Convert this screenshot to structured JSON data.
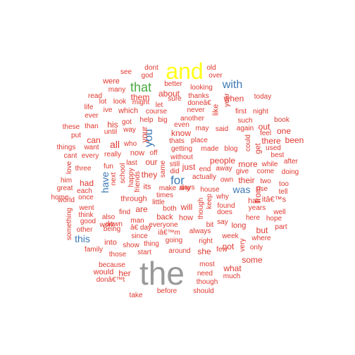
{
  "colors": {
    "red": "#e0382f",
    "blue": "#3a78b5",
    "green": "#49a941",
    "yellow": "#ffff1a",
    "gray": "#999999"
  },
  "words": [
    {
      "t": "the",
      "c": "gray",
      "s": 46
    },
    {
      "t": "and",
      "c": "yellow",
      "s": 32
    },
    {
      "t": "that",
      "c": "green",
      "s": 18
    },
    {
      "t": "with",
      "c": "blue",
      "s": 16
    },
    {
      "t": "for",
      "c": "blue",
      "s": 17
    },
    {
      "t": "you",
      "c": "blue",
      "s": 16,
      "v": true
    },
    {
      "t": "was",
      "c": "blue",
      "s": 14
    },
    {
      "t": "have",
      "c": "blue",
      "s": 14,
      "v": true
    },
    {
      "t": "this",
      "c": "blue",
      "s": 14
    },
    {
      "t": "dont",
      "c": "red",
      "s": 10
    },
    {
      "t": "old",
      "c": "red",
      "s": 10
    },
    {
      "t": "see",
      "c": "red",
      "s": 10
    },
    {
      "t": "god",
      "c": "red",
      "s": 10
    },
    {
      "t": "over",
      "c": "red",
      "s": 10
    },
    {
      "t": "were",
      "c": "red",
      "s": 11
    },
    {
      "t": "better",
      "c": "red",
      "s": 10
    },
    {
      "t": "many",
      "c": "red",
      "s": 10
    },
    {
      "t": "looking",
      "c": "red",
      "s": 10
    },
    {
      "t": "year",
      "c": "red",
      "s": 10,
      "v": true
    },
    {
      "t": "read",
      "c": "red",
      "s": 10
    },
    {
      "t": "about",
      "c": "red",
      "s": 12
    },
    {
      "t": "them",
      "c": "red",
      "s": 12
    },
    {
      "t": "thanks",
      "c": "red",
      "s": 10
    },
    {
      "t": "when",
      "c": "red",
      "s": 12
    },
    {
      "t": "today",
      "c": "red",
      "s": 10
    },
    {
      "t": "lot",
      "c": "red",
      "s": 10
    },
    {
      "t": "look",
      "c": "red",
      "s": 10
    },
    {
      "t": "might",
      "c": "red",
      "s": 10
    },
    {
      "t": "let",
      "c": "red",
      "s": 10
    },
    {
      "t": "sure",
      "c": "red",
      "s": 10
    },
    {
      "t": "doneâ€",
      "c": "red",
      "s": 10
    },
    {
      "t": "life",
      "c": "red",
      "s": 10
    },
    {
      "t": "ive",
      "c": "red",
      "s": 10
    },
    {
      "t": "which",
      "c": "red",
      "s": 11
    },
    {
      "t": "course",
      "c": "red",
      "s": 10
    },
    {
      "t": "never",
      "c": "red",
      "s": 10
    },
    {
      "t": "first",
      "c": "red",
      "s": 10
    },
    {
      "t": "night",
      "c": "red",
      "s": 10
    },
    {
      "t": "ever",
      "c": "red",
      "s": 10
    },
    {
      "t": "got",
      "c": "red",
      "s": 10
    },
    {
      "t": "help",
      "c": "red",
      "s": 10
    },
    {
      "t": "big",
      "c": "red",
      "s": 10
    },
    {
      "t": "another",
      "c": "red",
      "s": 10
    },
    {
      "t": "like",
      "c": "red",
      "s": 11,
      "v": true
    },
    {
      "t": "such",
      "c": "red",
      "s": 10
    },
    {
      "t": "book",
      "c": "red",
      "s": 10
    },
    {
      "t": "these",
      "c": "red",
      "s": 10
    },
    {
      "t": "than",
      "c": "red",
      "s": 10
    },
    {
      "t": "his",
      "c": "red",
      "s": 12
    },
    {
      "t": "way",
      "c": "red",
      "s": 10
    },
    {
      "t": "even",
      "c": "red",
      "s": 10
    },
    {
      "t": "may",
      "c": "red",
      "s": 10
    },
    {
      "t": "said",
      "c": "red",
      "s": 10
    },
    {
      "t": "again",
      "c": "red",
      "s": 10
    },
    {
      "t": "out",
      "c": "red",
      "s": 12
    },
    {
      "t": "feel",
      "c": "red",
      "s": 10
    },
    {
      "t": "put",
      "c": "red",
      "s": 10
    },
    {
      "t": "until",
      "c": "red",
      "s": 10
    },
    {
      "t": "your",
      "c": "red",
      "s": 12,
      "v": true
    },
    {
      "t": "know",
      "c": "red",
      "s": 12
    },
    {
      "t": "one",
      "c": "red",
      "s": 12
    },
    {
      "t": "can",
      "c": "red",
      "s": 12
    },
    {
      "t": "thats",
      "c": "red",
      "s": 10
    },
    {
      "t": "place",
      "c": "red",
      "s": 10
    },
    {
      "t": "could",
      "c": "red",
      "s": 10,
      "v": true
    },
    {
      "t": "there",
      "c": "red",
      "s": 12
    },
    {
      "t": "been",
      "c": "red",
      "s": 12
    },
    {
      "t": "things",
      "c": "red",
      "s": 10
    },
    {
      "t": "want",
      "c": "red",
      "s": 10
    },
    {
      "t": "all",
      "c": "red",
      "s": 14
    },
    {
      "t": "who",
      "c": "red",
      "s": 10
    },
    {
      "t": "getting",
      "c": "red",
      "s": 10
    },
    {
      "t": "made",
      "c": "red",
      "s": 10
    },
    {
      "t": "blog",
      "c": "red",
      "s": 10
    },
    {
      "t": "get",
      "c": "red",
      "s": 11,
      "v": true
    },
    {
      "t": "used",
      "c": "red",
      "s": 10
    },
    {
      "t": "cant",
      "c": "red",
      "s": 10
    },
    {
      "t": "every",
      "c": "red",
      "s": 10
    },
    {
      "t": "really",
      "c": "red",
      "s": 10
    },
    {
      "t": "now",
      "c": "red",
      "s": 11
    },
    {
      "t": "off",
      "c": "red",
      "s": 10
    },
    {
      "t": "without",
      "c": "red",
      "s": 10
    },
    {
      "t": "people",
      "c": "red",
      "s": 12
    },
    {
      "t": "more",
      "c": "red",
      "s": 12
    },
    {
      "t": "best",
      "c": "red",
      "s": 10
    },
    {
      "t": "last",
      "c": "red",
      "s": 10
    },
    {
      "t": "our",
      "c": "red",
      "s": 12
    },
    {
      "t": "still",
      "c": "red",
      "s": 10
    },
    {
      "t": "did",
      "c": "red",
      "s": 10
    },
    {
      "t": "while",
      "c": "red",
      "s": 10
    },
    {
      "t": "love",
      "c": "red",
      "s": 10,
      "v": true
    },
    {
      "t": "three",
      "c": "red",
      "s": 10
    },
    {
      "t": "fun",
      "c": "red",
      "s": 10
    },
    {
      "t": "school",
      "c": "red",
      "s": 10,
      "v": true
    },
    {
      "t": "happy",
      "c": "red",
      "s": 10,
      "v": true
    },
    {
      "t": "just",
      "c": "red",
      "s": 12
    },
    {
      "t": "end",
      "c": "red",
      "s": 10
    },
    {
      "t": "away",
      "c": "red",
      "s": 10
    },
    {
      "t": "give",
      "c": "red",
      "s": 10
    },
    {
      "t": "come",
      "c": "red",
      "s": 10
    },
    {
      "t": "doing",
      "c": "red",
      "s": 10
    },
    {
      "t": "after",
      "c": "red",
      "s": 10
    },
    {
      "t": "him",
      "c": "red",
      "s": 10
    },
    {
      "t": "next",
      "c": "red",
      "s": 10,
      "v": true
    },
    {
      "t": "they",
      "c": "red",
      "s": 12
    },
    {
      "t": "same",
      "c": "red",
      "s": 10,
      "v": true
    },
    {
      "t": "actually",
      "c": "red",
      "s": 10
    },
    {
      "t": "own",
      "c": "red",
      "s": 10
    },
    {
      "t": "their",
      "c": "red",
      "s": 12
    },
    {
      "t": "two",
      "c": "red",
      "s": 10
    },
    {
      "t": "too",
      "c": "red",
      "s": 10
    },
    {
      "t": "had",
      "c": "red",
      "s": 12
    },
    {
      "t": "friends",
      "c": "red",
      "s": 10,
      "v": true
    },
    {
      "t": "any",
      "c": "red",
      "s": 10
    },
    {
      "t": "great",
      "c": "red",
      "s": 10
    },
    {
      "t": "its",
      "c": "red",
      "s": 11
    },
    {
      "t": "make",
      "c": "red",
      "s": 10
    },
    {
      "t": "days",
      "c": "red",
      "s": 10
    },
    {
      "t": "house",
      "c": "red",
      "s": 10
    },
    {
      "t": "from",
      "c": "red",
      "s": 12,
      "v": true
    },
    {
      "t": "use",
      "c": "red",
      "s": 10
    },
    {
      "t": "tell",
      "c": "red",
      "s": 10
    },
    {
      "t": "each",
      "c": "red",
      "s": 10
    },
    {
      "t": "times",
      "c": "red",
      "s": 10
    },
    {
      "t": "why",
      "c": "red",
      "s": 10
    },
    {
      "t": "home",
      "c": "red",
      "s": 10
    },
    {
      "t": "once",
      "c": "red",
      "s": 10
    },
    {
      "t": "through",
      "c": "red",
      "s": 11
    },
    {
      "t": "keep",
      "c": "red",
      "s": 10,
      "v": true
    },
    {
      "t": "has",
      "c": "red",
      "s": 11
    },
    {
      "t": "itâ€™s",
      "c": "red",
      "s": 11
    },
    {
      "t": "world",
      "c": "red",
      "s": 10
    },
    {
      "t": "went",
      "c": "red",
      "s": 10
    },
    {
      "t": "will",
      "c": "red",
      "s": 12
    },
    {
      "t": "found",
      "c": "red",
      "s": 10
    },
    {
      "t": "years",
      "c": "red",
      "s": 10
    },
    {
      "t": "are",
      "c": "red",
      "s": 12
    },
    {
      "t": "little",
      "c": "red",
      "s": 10
    },
    {
      "t": "think",
      "c": "red",
      "s": 10
    },
    {
      "t": "both",
      "c": "red",
      "s": 10
    },
    {
      "t": "does",
      "c": "red",
      "s": 10
    },
    {
      "t": "well",
      "c": "red",
      "s": 10
    },
    {
      "t": "good",
      "c": "red",
      "s": 10
    },
    {
      "t": "work",
      "c": "red",
      "s": 10
    },
    {
      "t": "find",
      "c": "red",
      "s": 10
    },
    {
      "t": "back",
      "c": "red",
      "s": 11
    },
    {
      "t": "how",
      "c": "red",
      "s": 11
    },
    {
      "t": "though",
      "c": "red",
      "s": 10,
      "v": true
    },
    {
      "t": "here",
      "c": "red",
      "s": 10
    },
    {
      "t": "hope",
      "c": "red",
      "s": 10
    },
    {
      "t": "something",
      "c": "red",
      "s": 10,
      "v": true
    },
    {
      "t": "also",
      "c": "red",
      "s": 10
    },
    {
      "t": "man",
      "c": "red",
      "s": 10
    },
    {
      "t": "everyone",
      "c": "red",
      "s": 10
    },
    {
      "t": "say",
      "c": "red",
      "s": 10
    },
    {
      "t": "long",
      "c": "red",
      "s": 11
    },
    {
      "t": "down",
      "c": "red",
      "s": 10
    },
    {
      "t": "â€ day",
      "c": "red",
      "s": 10
    },
    {
      "t": "bit",
      "c": "red",
      "s": 10
    },
    {
      "t": "other",
      "c": "red",
      "s": 10
    },
    {
      "t": "part",
      "c": "red",
      "s": 10
    },
    {
      "t": "but",
      "c": "red",
      "s": 12
    },
    {
      "t": "being",
      "c": "red",
      "s": 10
    },
    {
      "t": "iâ€™m",
      "c": "red",
      "s": 10
    },
    {
      "t": "always",
      "c": "red",
      "s": 10
    },
    {
      "t": "since",
      "c": "red",
      "s": 10
    },
    {
      "t": "week",
      "c": "red",
      "s": 10
    },
    {
      "t": "very",
      "c": "red",
      "s": 10,
      "v": true
    },
    {
      "t": "where",
      "c": "red",
      "s": 10
    },
    {
      "t": "into",
      "c": "red",
      "s": 11
    },
    {
      "t": "going",
      "c": "red",
      "s": 10
    },
    {
      "t": "right",
      "c": "red",
      "s": 10
    },
    {
      "t": "family",
      "c": "red",
      "s": 10
    },
    {
      "t": "show",
      "c": "red",
      "s": 10
    },
    {
      "t": "thing",
      "c": "red",
      "s": 10
    },
    {
      "t": "not",
      "c": "red",
      "s": 12
    },
    {
      "t": "some",
      "c": "red",
      "s": 12
    },
    {
      "t": "only",
      "c": "red",
      "s": 10
    },
    {
      "t": "those",
      "c": "red",
      "s": 10
    },
    {
      "t": "start",
      "c": "red",
      "s": 10
    },
    {
      "t": "around",
      "c": "red",
      "s": 10
    },
    {
      "t": "she",
      "c": "red",
      "s": 12
    },
    {
      "t": "few",
      "c": "red",
      "s": 10
    },
    {
      "t": "because",
      "c": "red",
      "s": 10
    },
    {
      "t": "most",
      "c": "red",
      "s": 10
    },
    {
      "t": "what",
      "c": "red",
      "s": 12
    },
    {
      "t": "would",
      "c": "red",
      "s": 11
    },
    {
      "t": "her",
      "c": "red",
      "s": 12
    },
    {
      "t": "need",
      "c": "red",
      "s": 10
    },
    {
      "t": "much",
      "c": "red",
      "s": 10
    },
    {
      "t": "donâ€™t",
      "c": "red",
      "s": 10
    },
    {
      "t": "though",
      "c": "red",
      "s": 10
    },
    {
      "t": "take",
      "c": "red",
      "s": 10
    },
    {
      "t": "before",
      "c": "red",
      "s": 10
    },
    {
      "t": "should",
      "c": "red",
      "s": 10
    }
  ]
}
